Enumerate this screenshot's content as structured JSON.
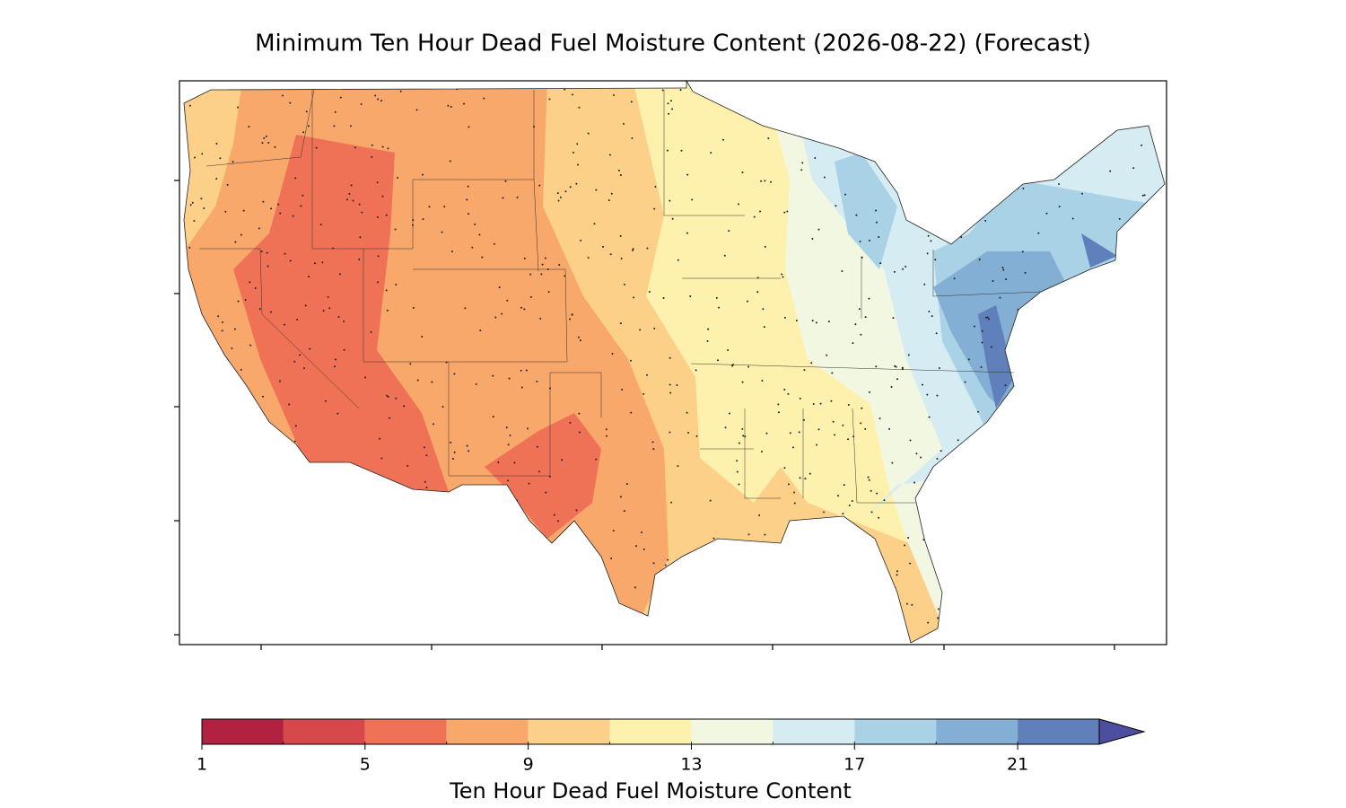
{
  "map": {
    "title": "Minimum Ten Hour Dead Fuel Moisture Content (2026-08-22) (Forecast)",
    "colorbar": {
      "label": "Ten Hour Dead Fuel Moisture Content",
      "bounds": [
        1,
        3,
        5,
        7,
        9,
        11,
        13,
        15,
        17,
        19,
        21,
        23
      ],
      "colors": [
        "#b0223f",
        "#d7484a",
        "#ef7256",
        "#f8a86b",
        "#fdd08a",
        "#fef1ad",
        "#f2f7e2",
        "#d6ecf3",
        "#a9d2e6",
        "#82afd3",
        "#5f80bb"
      ],
      "extend": "max",
      "extend_color": "#4d4ea0",
      "ticks": [
        1,
        5,
        9,
        13,
        17,
        21
      ]
    }
  }
}
